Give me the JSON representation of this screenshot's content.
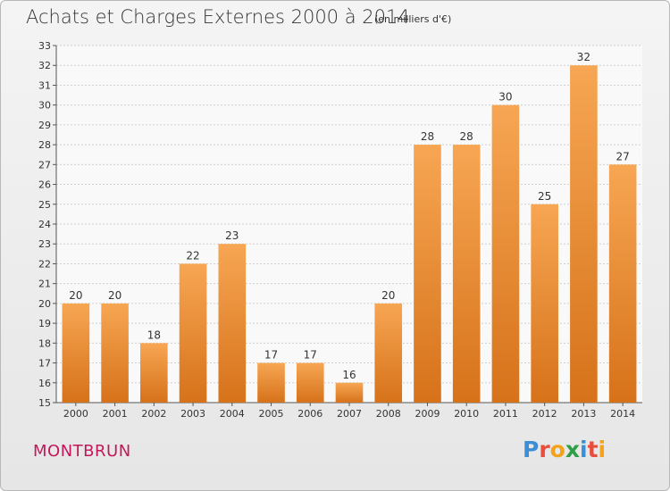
{
  "header": {
    "title": "Achats et Charges Externes 2000 à 2014",
    "subtitle": "(en milliers d'€)"
  },
  "footer": {
    "commune": "MONTBRUN",
    "logo": "Proxiti"
  },
  "colors": {
    "bar_top": "#f7a653",
    "bar_bottom": "#d6721a",
    "commune": "#c2185b"
  },
  "chart_data": {
    "type": "bar",
    "title": "Achats et Charges Externes 2000 à 2014",
    "subtitle": "(en milliers d'€)",
    "categories": [
      "2000",
      "2001",
      "2002",
      "2003",
      "2004",
      "2005",
      "2006",
      "2007",
      "2008",
      "2009",
      "2010",
      "2011",
      "2012",
      "2013",
      "2014"
    ],
    "values": [
      20,
      20,
      18,
      22,
      23,
      17,
      17,
      16,
      20,
      28,
      28,
      30,
      25,
      32,
      27
    ],
    "ylim": [
      15,
      33
    ],
    "yticks": [
      15,
      16,
      17,
      18,
      19,
      20,
      21,
      22,
      23,
      24,
      25,
      26,
      27,
      28,
      29,
      30,
      31,
      32,
      33
    ],
    "grid": true,
    "data_labels": true
  }
}
